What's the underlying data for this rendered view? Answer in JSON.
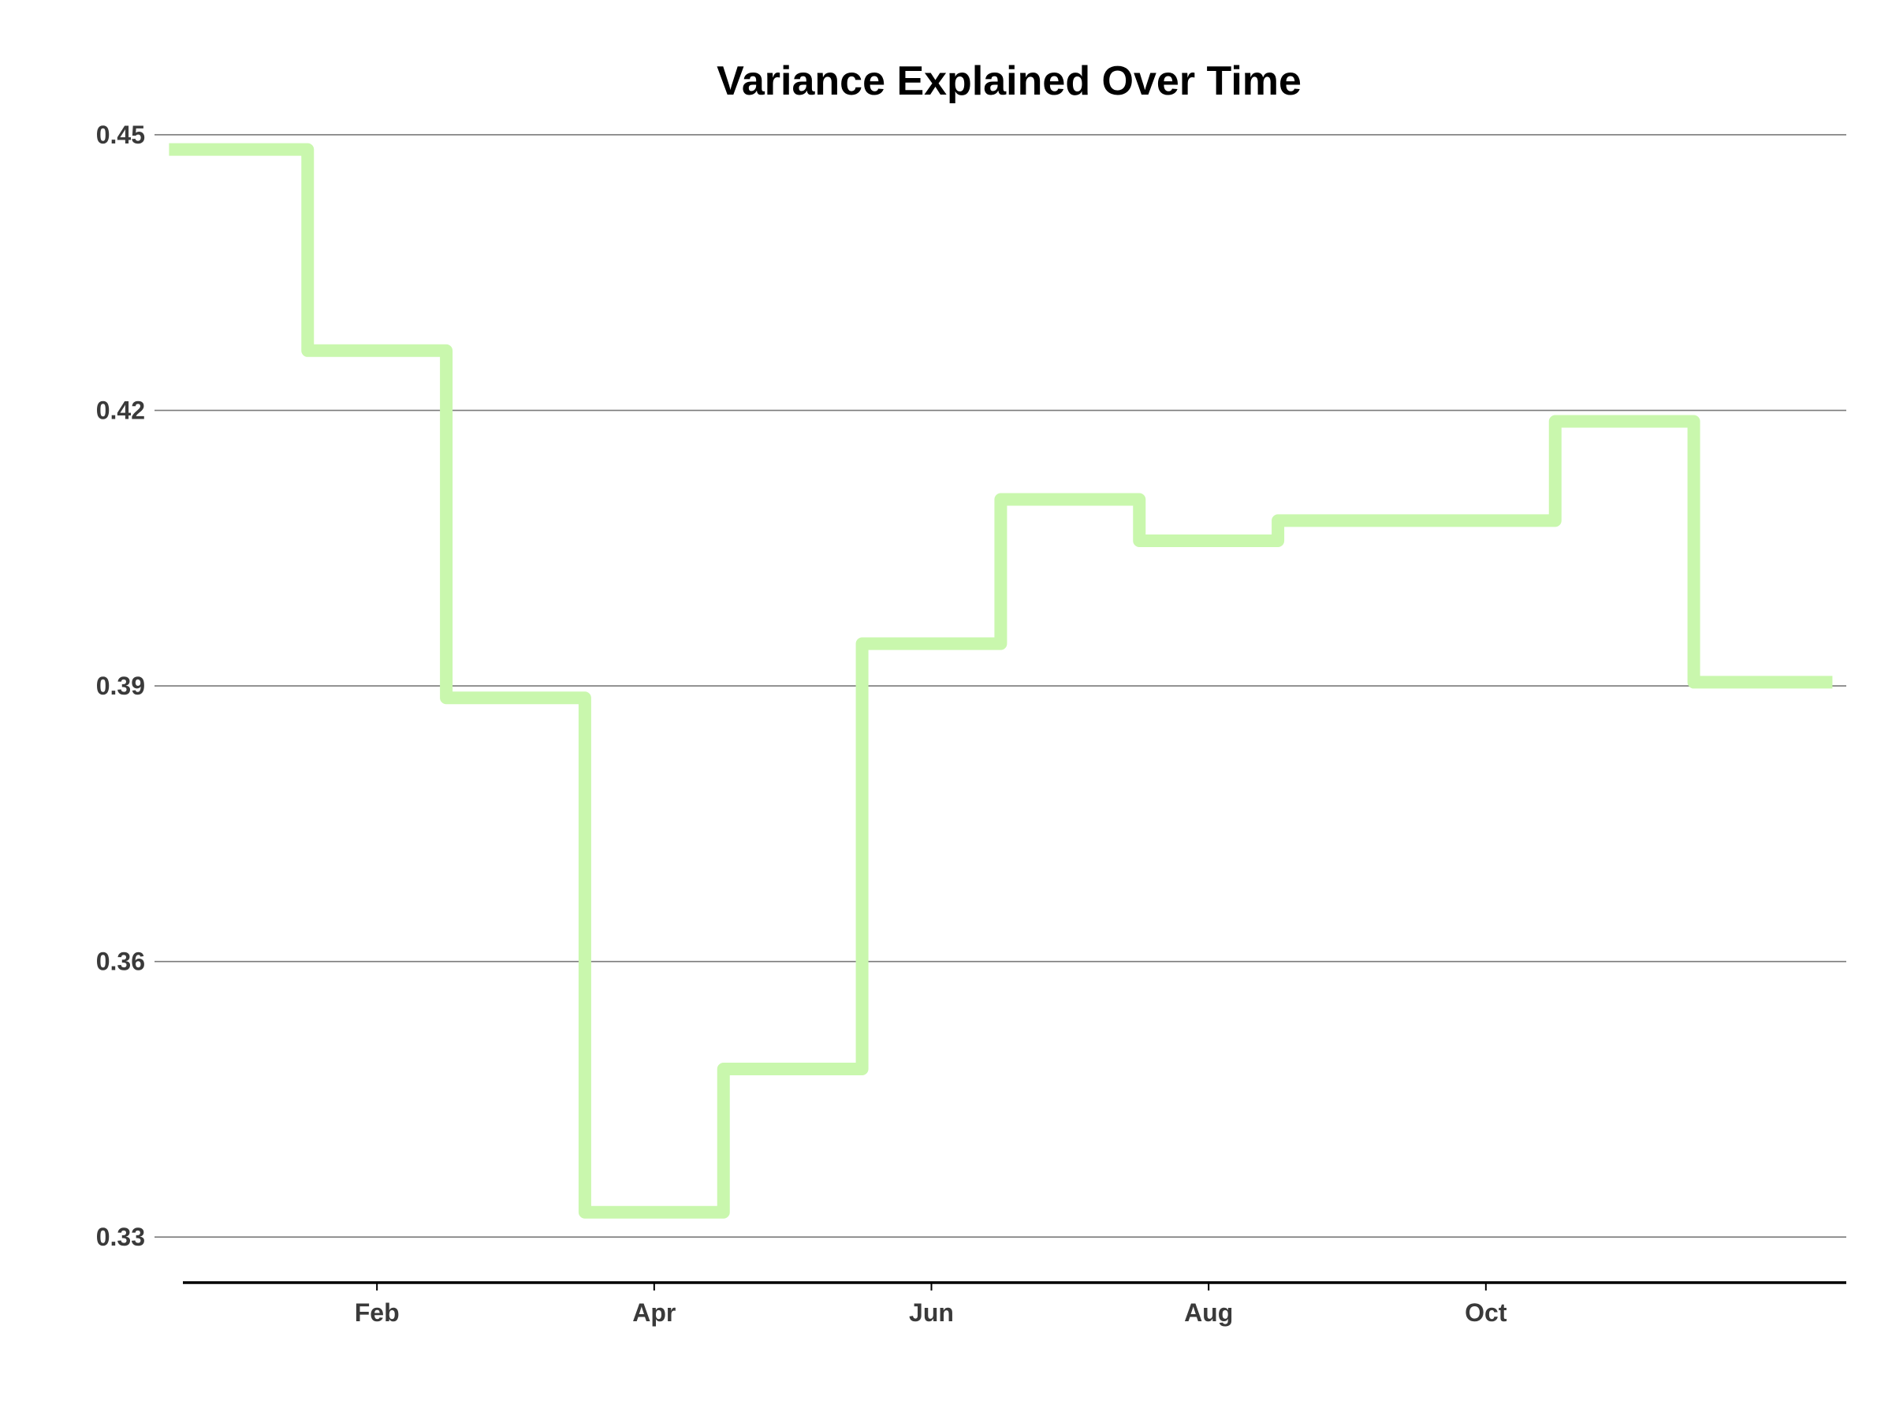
{
  "chart_data": {
    "type": "line",
    "step": "mid",
    "title": "Variance Explained Over Time",
    "xlabel": "",
    "ylabel": "",
    "x": [
      1,
      2,
      3,
      4,
      5,
      6,
      7,
      8,
      9,
      10,
      11,
      12
    ],
    "xlim": [
      0.6,
      12.6
    ],
    "ylim": [
      0.3265,
      0.4518
    ],
    "x_ticks": [
      {
        "value": 2,
        "label": "Feb"
      },
      {
        "value": 4,
        "label": "Apr"
      },
      {
        "value": 6,
        "label": "Jun"
      },
      {
        "value": 8,
        "label": "Aug"
      },
      {
        "value": 10,
        "label": "Oct"
      }
    ],
    "y_ticks": [
      {
        "value": 0.33,
        "label": "0.33"
      },
      {
        "value": 0.36,
        "label": "0.36"
      },
      {
        "value": 0.39,
        "label": "0.39"
      },
      {
        "value": 0.42,
        "label": "0.42"
      },
      {
        "value": 0.45,
        "label": "0.45"
      }
    ],
    "grid": {
      "horizontal": true,
      "vertical": false
    },
    "legend": "none",
    "series": [
      {
        "values": [
          0.4484,
          0.4265,
          0.3887,
          0.3327,
          0.3483,
          0.3946,
          0.4103,
          0.4058,
          0.408,
          0.408,
          0.4188,
          0.3904
        ],
        "color": "#c9f7ad"
      }
    ]
  }
}
